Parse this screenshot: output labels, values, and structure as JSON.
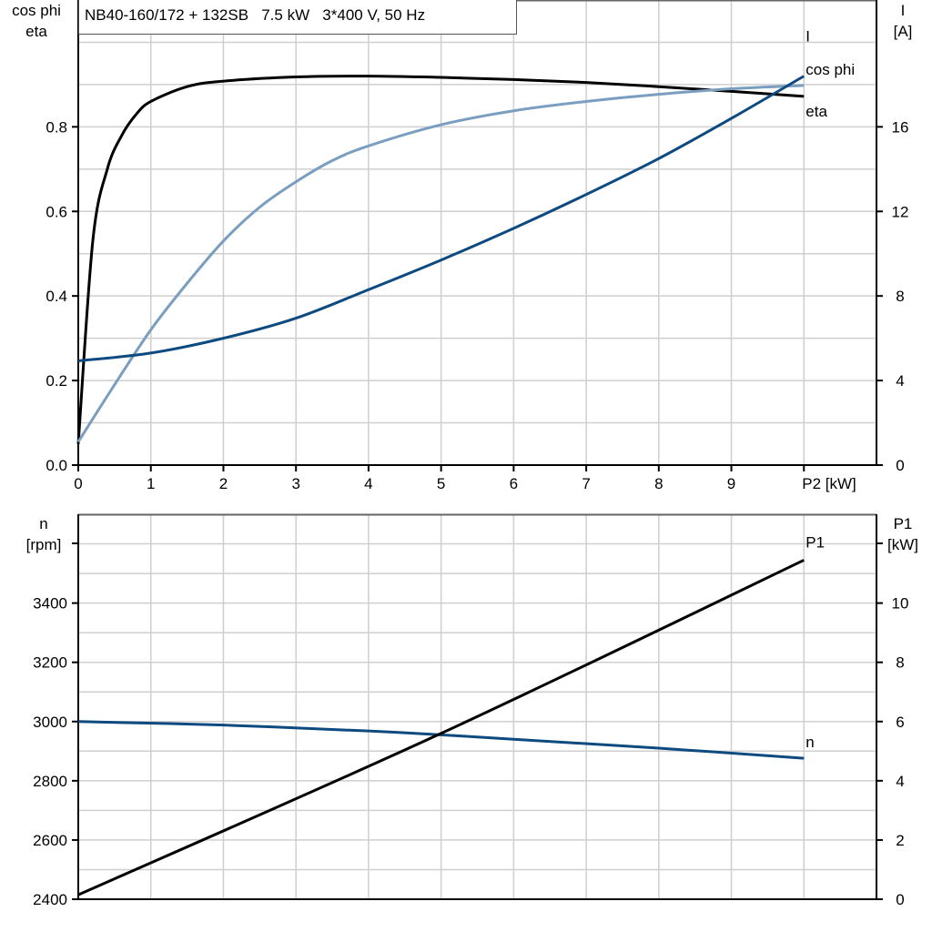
{
  "chart_data": [
    {
      "type": "line",
      "title": "NB40-160/172 + 132SB   7.5 kW   3*400 V, 50 Hz",
      "xlabel": "P2 [kW]",
      "ylabel_left": [
        "cos phi",
        "eta"
      ],
      "ylabel_right": [
        "I",
        "[A]"
      ],
      "xlim": [
        0,
        11
      ],
      "ylim_left": [
        0,
        1.1
      ],
      "ylim_right": [
        0,
        22
      ],
      "x_ticks": [
        "0",
        "1",
        "2",
        "3",
        "4",
        "5",
        "6",
        "7",
        "8",
        "9"
      ],
      "y_ticks_left": [
        "0.0",
        "0.2",
        "0.4",
        "0.6",
        "0.8"
      ],
      "y_ticks_right": [
        "0",
        "4",
        "8",
        "12",
        "16"
      ],
      "grid": true,
      "series": [
        {
          "name": "eta",
          "axis": "left",
          "color": "#000000",
          "x": [
            0,
            0.2,
            0.4,
            0.6,
            0.8,
            1,
            1.5,
            2,
            3,
            4,
            5,
            6,
            7,
            8,
            9,
            10
          ],
          "y": [
            0.05,
            0.53,
            0.7,
            0.78,
            0.83,
            0.86,
            0.895,
            0.908,
            0.918,
            0.92,
            0.917,
            0.912,
            0.905,
            0.895,
            0.884,
            0.872
          ]
        },
        {
          "name": "cos phi",
          "axis": "left",
          "color": "#7a9ec0",
          "x": [
            0,
            0.5,
            1,
            1.5,
            2,
            2.5,
            3,
            3.5,
            4,
            5,
            6,
            7,
            8,
            9,
            10
          ],
          "y": [
            0.055,
            0.19,
            0.32,
            0.43,
            0.53,
            0.61,
            0.67,
            0.72,
            0.755,
            0.805,
            0.838,
            0.86,
            0.877,
            0.89,
            0.898
          ]
        },
        {
          "name": "I",
          "axis": "right",
          "color": "#0d4a80",
          "x": [
            0,
            1,
            2,
            3,
            4,
            5,
            6,
            7,
            8,
            9,
            10
          ],
          "y": [
            4.93,
            5.3,
            6.0,
            6.95,
            8.3,
            9.7,
            11.2,
            12.8,
            14.5,
            16.4,
            18.4
          ]
        }
      ]
    },
    {
      "type": "line",
      "xlim": [
        0,
        11
      ],
      "ylabel_left": [
        "n",
        "[rpm]"
      ],
      "ylabel_right": [
        "P1",
        "[kW]"
      ],
      "ylim_left": [
        2400,
        3700
      ],
      "ylim_right": [
        0,
        13
      ],
      "y_ticks_left": [
        "2400",
        "2600",
        "2800",
        "3000",
        "3200",
        "3400"
      ],
      "y_ticks_right": [
        "0",
        "2",
        "4",
        "6",
        "8",
        "10"
      ],
      "grid": true,
      "series": [
        {
          "name": "n",
          "axis": "left",
          "color": "#0d4a80",
          "x": [
            0,
            2,
            4,
            5,
            6,
            8,
            10
          ],
          "y": [
            3000,
            2988,
            2968,
            2955,
            2940,
            2910,
            2876
          ]
        },
        {
          "name": "P1",
          "axis": "right",
          "color": "#000000",
          "x": [
            0,
            5,
            10
          ],
          "y": [
            0.15,
            5.6,
            11.45
          ]
        }
      ]
    }
  ]
}
